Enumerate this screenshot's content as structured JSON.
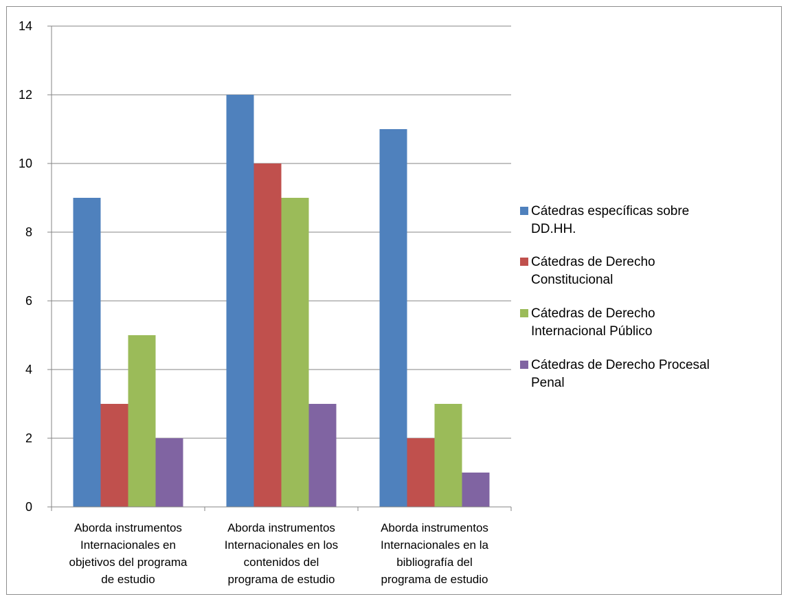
{
  "chart_data": {
    "type": "bar",
    "categories": [
      [
        "Aborda instrumentos",
        "Internacionales en",
        "objetivos del programa",
        "de estudio"
      ],
      [
        "Aborda instrumentos",
        "Internacionales en los",
        "contenidos del",
        "programa de estudio"
      ],
      [
        "Aborda instrumentos",
        "Internacionales en la",
        "bibliografía del",
        "programa de estudio"
      ]
    ],
    "series": [
      {
        "name": [
          "Cátedras específicas sobre",
          "DD.HH."
        ],
        "color": "#4f81bd",
        "values": [
          9,
          12,
          11
        ]
      },
      {
        "name": [
          "Cátedras de Derecho",
          "Constitucional"
        ],
        "color": "#c0504d",
        "values": [
          3,
          10,
          2
        ]
      },
      {
        "name": [
          "Cátedras de Derecho",
          "Internacional Público"
        ],
        "color": "#9bbb59",
        "values": [
          5,
          9,
          3
        ]
      },
      {
        "name": [
          "Cátedras de Derecho Procesal",
          "Penal"
        ],
        "color": "#8064a2",
        "values": [
          2,
          3,
          1
        ]
      }
    ],
    "y_ticks": [
      0,
      2,
      4,
      6,
      8,
      10,
      12,
      14
    ],
    "ylim": [
      0,
      14
    ],
    "grid": true,
    "legend_position": "right",
    "title": "",
    "xlabel": "",
    "ylabel": ""
  }
}
